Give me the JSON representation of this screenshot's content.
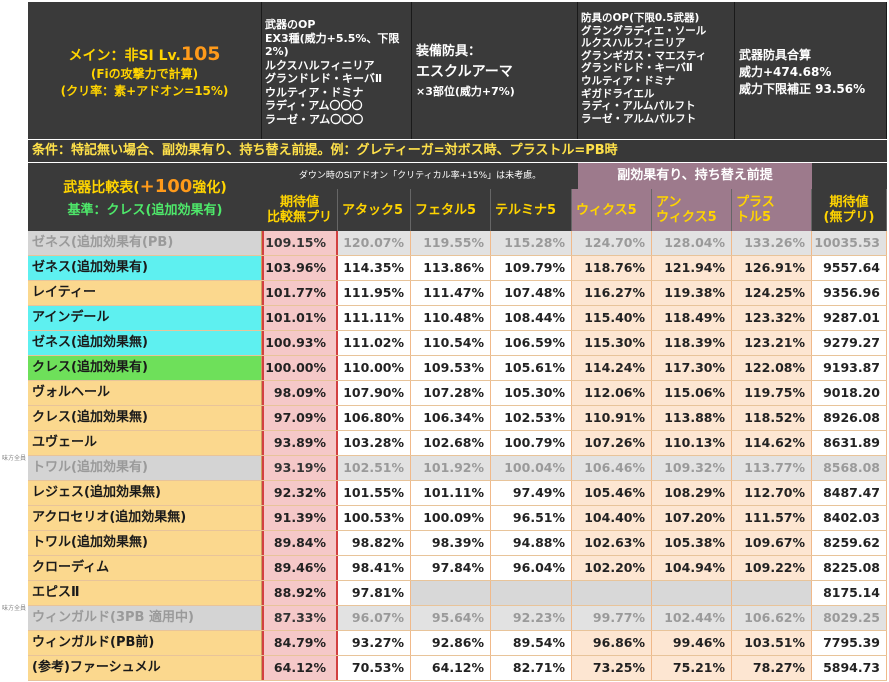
{
  "side_marks": [
    "味方全員",
    "味方全員"
  ],
  "header": {
    "main_prefix": "メイン：非SI Lv.",
    "main_level": "105",
    "main_line2": "(Fiの攻撃力で計算)",
    "main_line3": "(クリ率：素+アドオン=15%)",
    "weapon_op_lines": [
      "武器のOP",
      "EX3種(威力+5.5%、下限2%)",
      "ルクスハルフィニリア",
      "グランドレド・キーバⅡ",
      "ウルティア・ドミナ",
      "ラディ・アム〇〇〇",
      "ラーゼ・アム〇〇〇"
    ],
    "armor_label": "装備防具：",
    "armor_name": "エスクルアーマ",
    "armor_note": "×3部位(威力+7%)",
    "armor_op_lines": [
      "防具のOP(下限0.5武器)",
      "グラングラディエ・ソール",
      "ルクスハルフィニリア",
      "グランギガス・マエスティ",
      "グランドレド・キーバⅡ",
      "ウルティア・ドミナ",
      "ギガドライエル",
      "ラディ・アルムパルフト",
      "ラーゼ・アルムパルフト"
    ],
    "total_lines": [
      "武器防具合算",
      "威力+474.68%",
      "威力下限補正 93.56%"
    ]
  },
  "condition": "条件：特記無い場合、副効果有り、持ち替え前提。例：グレティーガ=対ボス時、プラストル=PB時",
  "columns": {
    "label_prefix": "武器比較表(",
    "label_big": "+100",
    "label_suffix": "強化)",
    "base": "基準：クレス(追加効果有)",
    "note": "ダウン時のSIアドオン「クリティカル率+15%」は未考慮。",
    "side_effect": "副効果有り、持ち替え前提",
    "ratio_l1": "期待値",
    "ratio_l2": "比較無プリ",
    "c1": "アタック5",
    "c2": "フェタル5",
    "c3": "テルミナ5",
    "c4": "ウィクス5",
    "c5_l1": "アン",
    "c5_l2": "ウィクス5",
    "c6_l1": "プラス",
    "c6_l2": "トル5",
    "ev_l1": "期待値",
    "ev_l2": "(無プリ)"
  },
  "rows": [
    {
      "name": "ゼネス(追加効果有(PB)",
      "ratio": "109.15%",
      "v": [
        "120.07%",
        "119.55%",
        "115.28%",
        "124.70%",
        "128.04%",
        "133.26%"
      ],
      "ev": "10035.53",
      "style": "gray"
    },
    {
      "name": "ゼネス(追加効果有)",
      "ratio": "103.96%",
      "v": [
        "114.35%",
        "113.86%",
        "109.79%",
        "118.76%",
        "121.94%",
        "126.91%"
      ],
      "ev": "9557.64",
      "style": "cyan"
    },
    {
      "name": "レイティー",
      "ratio": "101.77%",
      "v": [
        "111.95%",
        "111.47%",
        "107.48%",
        "116.27%",
        "119.38%",
        "124.25%"
      ],
      "ev": "9356.96",
      "style": ""
    },
    {
      "name": "アインデール",
      "ratio": "101.01%",
      "v": [
        "111.11%",
        "110.48%",
        "108.44%",
        "115.40%",
        "118.49%",
        "123.32%"
      ],
      "ev": "9287.01",
      "style": "cyan"
    },
    {
      "name": "ゼネス(追加効果無)",
      "ratio": "100.93%",
      "v": [
        "111.02%",
        "110.54%",
        "106.59%",
        "115.30%",
        "118.39%",
        "123.21%"
      ],
      "ev": "9279.27",
      "style": "cyan"
    },
    {
      "name": "クレス(追加効果有)",
      "ratio": "100.00%",
      "v": [
        "110.00%",
        "109.53%",
        "105.61%",
        "114.24%",
        "117.30%",
        "122.08%"
      ],
      "ev": "9193.87",
      "style": "green"
    },
    {
      "name": "ヴォルヘール",
      "ratio": "98.09%",
      "v": [
        "107.90%",
        "107.28%",
        "105.30%",
        "112.06%",
        "115.06%",
        "119.75%"
      ],
      "ev": "9018.20",
      "style": ""
    },
    {
      "name": "クレス(追加効果無)",
      "ratio": "97.09%",
      "v": [
        "106.80%",
        "106.34%",
        "102.53%",
        "110.91%",
        "113.88%",
        "118.52%"
      ],
      "ev": "8926.08",
      "style": ""
    },
    {
      "name": "ユヴェール",
      "ratio": "93.89%",
      "v": [
        "103.28%",
        "102.68%",
        "100.79%",
        "107.26%",
        "110.13%",
        "114.62%"
      ],
      "ev": "8631.89",
      "style": ""
    },
    {
      "name": "トワル(追加効果有)",
      "ratio": "93.19%",
      "v": [
        "102.51%",
        "101.92%",
        "100.04%",
        "106.46%",
        "109.32%",
        "113.77%"
      ],
      "ev": "8568.08",
      "style": "gray"
    },
    {
      "name": "レジェス(追加効果無)",
      "ratio": "92.32%",
      "v": [
        "101.55%",
        "101.11%",
        "97.49%",
        "105.46%",
        "108.29%",
        "112.70%"
      ],
      "ev": "8487.47",
      "style": ""
    },
    {
      "name": "アクロセリオ(追加効果無)",
      "ratio": "91.39%",
      "v": [
        "100.53%",
        "100.09%",
        "96.51%",
        "104.40%",
        "107.20%",
        "111.57%"
      ],
      "ev": "8402.03",
      "style": ""
    },
    {
      "name": "トワル(追加効果無)",
      "ratio": "89.84%",
      "v": [
        "98.82%",
        "98.39%",
        "94.88%",
        "102.63%",
        "105.38%",
        "109.67%"
      ],
      "ev": "8259.62",
      "style": ""
    },
    {
      "name": "クローディム",
      "ratio": "89.46%",
      "v": [
        "98.41%",
        "97.84%",
        "96.04%",
        "102.20%",
        "104.94%",
        "109.22%"
      ],
      "ev": "8225.08",
      "style": ""
    },
    {
      "name": "エピスⅡ",
      "ratio": "88.92%",
      "v": [
        "97.81%",
        "",
        "",
        "",
        "",
        ""
      ],
      "ev": "8175.14",
      "style": ""
    },
    {
      "name": "ウィンガルド(3PB 適用中)",
      "ratio": "87.33%",
      "v": [
        "96.07%",
        "95.64%",
        "92.23%",
        "99.77%",
        "102.44%",
        "106.62%"
      ],
      "ev": "8029.25",
      "style": "gray"
    },
    {
      "name": "ウィンガルド(PB前)",
      "ratio": "84.79%",
      "v": [
        "93.27%",
        "92.86%",
        "89.54%",
        "96.86%",
        "99.46%",
        "103.51%"
      ],
      "ev": "7795.39",
      "style": ""
    },
    {
      "name": "(参考)ファーシュメル",
      "ratio": "64.12%",
      "v": [
        "70.53%",
        "64.12%",
        "82.71%",
        "73.25%",
        "75.21%",
        "78.27%"
      ],
      "ev": "5894.73",
      "style": ""
    }
  ]
}
